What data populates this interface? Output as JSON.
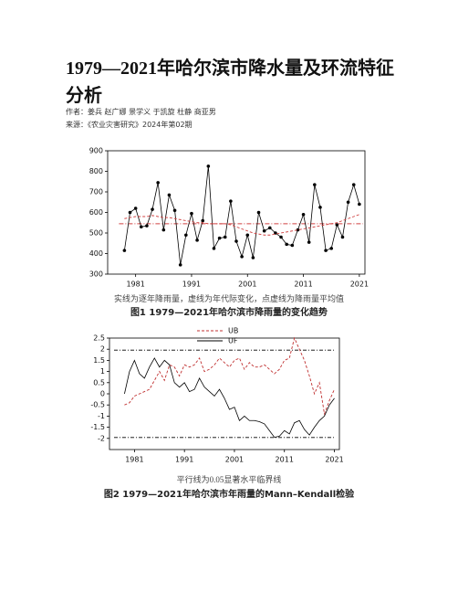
{
  "header": {
    "title": "1979—2021年哈尔滨市降水量及环流特征分析",
    "authors": "作者：姜兵 赵广娜 景学义 于凯旋 杜静 商亚男",
    "source": "来源：《农业灾害研究》2024年第02期"
  },
  "chart_data": [
    {
      "type": "line",
      "note": "实线为逐年降雨量，虚线为年代际变化，点虚线为降雨量平均值",
      "caption": "图1 1979—2021年哈尔滨市降雨量的变化趋势",
      "x": [
        1979,
        1980,
        1981,
        1982,
        1983,
        1984,
        1985,
        1986,
        1987,
        1988,
        1989,
        1990,
        1991,
        1992,
        1993,
        1994,
        1995,
        1996,
        1997,
        1998,
        1999,
        2000,
        2001,
        2002,
        2003,
        2004,
        2005,
        2006,
        2007,
        2008,
        2009,
        2010,
        2011,
        2012,
        2013,
        2014,
        2015,
        2016,
        2017,
        2018,
        2019,
        2020,
        2021
      ],
      "series": [
        {
          "color": "#000000",
          "linestyle": "solid",
          "markers": true,
          "values": [
            415,
            600,
            620,
            530,
            535,
            615,
            745,
            515,
            685,
            610,
            345,
            490,
            595,
            465,
            560,
            825,
            425,
            475,
            480,
            655,
            460,
            385,
            490,
            380,
            600,
            510,
            525,
            500,
            480,
            445,
            440,
            515,
            590,
            455,
            735,
            625,
            415,
            425,
            540,
            480,
            650,
            735,
            640
          ]
        },
        {
          "color": "#d04040",
          "linestyle": "dashed",
          "markers": false,
          "values": [
            570,
            575,
            580,
            580,
            580,
            585,
            580,
            575,
            575,
            570,
            565,
            560,
            555,
            550,
            550,
            545,
            545,
            545,
            545,
            540,
            530,
            520,
            510,
            500,
            495,
            490,
            490,
            495,
            500,
            505,
            510,
            515,
            520,
            525,
            530,
            535,
            540,
            545,
            550,
            560,
            570,
            580,
            590
          ]
        }
      ],
      "mean": 545,
      "mean_color": "#d04040",
      "xlim": [
        1976,
        2022
      ],
      "xticks": [
        1981,
        1991,
        2001,
        2011,
        2021
      ],
      "ylim": [
        300,
        900
      ],
      "yticks": [
        300,
        400,
        500,
        600,
        700,
        800,
        900
      ]
    },
    {
      "type": "line",
      "note": "平行线为0.05显著水平临界线",
      "caption": "图2 1979—2021年哈尔滨市年雨量的Mann–Kendall检验",
      "x": [
        1979,
        1980,
        1981,
        1982,
        1983,
        1984,
        1985,
        1986,
        1987,
        1988,
        1989,
        1990,
        1991,
        1992,
        1993,
        1994,
        1995,
        1996,
        1997,
        1998,
        1999,
        2000,
        2001,
        2002,
        2003,
        2004,
        2005,
        2006,
        2007,
        2008,
        2009,
        2010,
        2011,
        2012,
        2013,
        2014,
        2015,
        2016,
        2017,
        2018,
        2019,
        2020,
        2021
      ],
      "series": [
        {
          "name": "UB",
          "color": "#c03030",
          "linestyle": "dashed",
          "markers": false,
          "values": [
            -0.5,
            -0.4,
            -0.1,
            0.0,
            0.1,
            0.2,
            0.6,
            1.0,
            0.6,
            1.3,
            1.2,
            0.8,
            1.3,
            1.2,
            1.3,
            1.6,
            1.0,
            1.1,
            1.3,
            1.6,
            1.4,
            1.2,
            1.5,
            1.6,
            1.1,
            1.4,
            1.2,
            1.2,
            1.3,
            1.1,
            0.9,
            1.1,
            1.5,
            1.6,
            2.5,
            2.0,
            1.5,
            0.8,
            0.0,
            0.5,
            -0.9,
            -0.3,
            0.2
          ]
        },
        {
          "name": "UF",
          "color": "#000000",
          "linestyle": "solid",
          "markers": false,
          "values": [
            0,
            1.0,
            1.5,
            0.9,
            0.7,
            1.2,
            1.6,
            1.2,
            1.5,
            1.3,
            0.5,
            0.3,
            0.5,
            0.1,
            0.2,
            0.7,
            0.3,
            0.1,
            -0.1,
            0.2,
            -0.2,
            -0.7,
            -0.6,
            -1.2,
            -1.0,
            -1.2,
            -1.2,
            -1.25,
            -1.35,
            -1.65,
            -1.95,
            -1.9,
            -1.65,
            -1.8,
            -1.3,
            -1.2,
            -1.6,
            -1.85,
            -1.5,
            -1.2,
            -1.0,
            -0.5,
            -0.2
          ]
        }
      ],
      "critical": [
        1.96,
        -1.96
      ],
      "critical_color": "#000000",
      "legend": "top",
      "xlim": [
        1976,
        2022
      ],
      "xticks": [
        1981,
        1991,
        2001,
        2011,
        2021
      ],
      "ylim": [
        -2.5,
        2.5
      ],
      "yticks": [
        -2,
        -1.5,
        -1,
        -0.5,
        0,
        0.5,
        1,
        1.5,
        2,
        2.5
      ]
    }
  ]
}
